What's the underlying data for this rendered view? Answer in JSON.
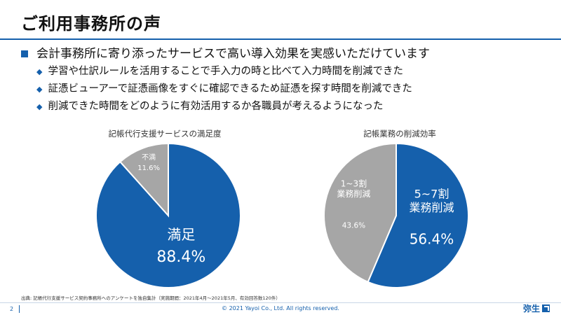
{
  "slide": {
    "title": "ご利用事務所の声",
    "lead": "会計事務所に寄り添ったサービスで高い導入効果を実感いただけています",
    "points": [
      "学習や仕訳ルールを活用することで手入力の時と比べて入力時間を削減できた",
      "証憑ビューアーで証憑画像をすぐに確認できるため証憑を探す時間を削減できた",
      "削減できた時間をどのように有効活用するか各職員が考えるようになった"
    ],
    "source_note": "出典: 記帳代行支援サービス契約事務所へのアンケートを独自集計（実施期間：2021年4月〜2021年5月、有効回答数120件）",
    "page_number": "2",
    "copyright": "© 2021 Yayoi Co., Ltd. All rights reserved.",
    "brand": "弥生"
  },
  "colors": {
    "primary": "#1560ac",
    "secondary": "#a6a6a6",
    "label_light": "#ffffff"
  },
  "chart_data": [
    {
      "type": "pie",
      "title": "記帳代行支援サービスの満足度",
      "slices": [
        {
          "label": "満足",
          "value": 88.4,
          "value_label": "88.4%",
          "color": "#1560ac"
        },
        {
          "label": "不満",
          "value": 11.6,
          "value_label": "11.6%",
          "color": "#a6a6a6"
        }
      ]
    },
    {
      "type": "pie",
      "title": "記帳業務の削減効率",
      "slices": [
        {
          "label": "5~7割\n業務削減",
          "value": 56.4,
          "value_label": "56.4%",
          "color": "#1560ac"
        },
        {
          "label": "1~3割\n業務削減",
          "value": 43.6,
          "value_label": "43.6%",
          "color": "#a6a6a6"
        }
      ]
    }
  ]
}
